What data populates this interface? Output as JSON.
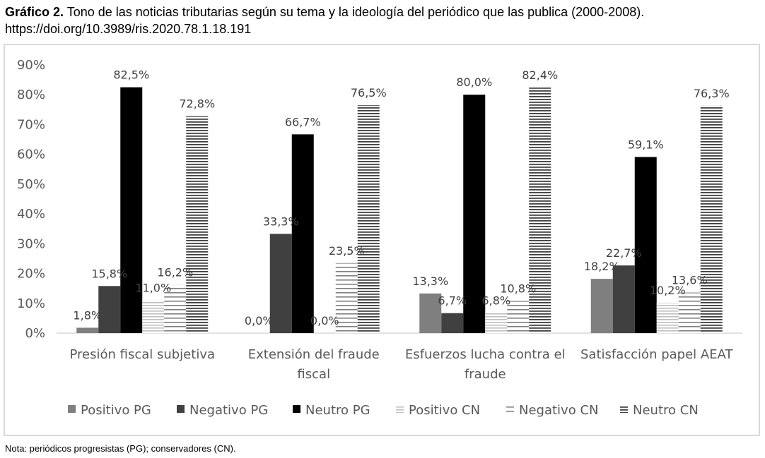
{
  "title": {
    "label": "Gráfico 2.",
    "text": " Tono de las noticias tributarias según su tema y la ideología del periódico que las publica (2000-2008). https://doi.org/10.3989/ris.2020.78.1.18.191"
  },
  "note": "Nota: periódicos progresistas (PG); conservadores (CN).",
  "chart_data": {
    "type": "bar",
    "categories": [
      [
        "Presión fiscal subjetiva"
      ],
      [
        "Extensión del fraude",
        "fiscal"
      ],
      [
        "Esfuerzos lucha contra el",
        "fraude"
      ],
      [
        "Satisfacción papel AEAT"
      ]
    ],
    "series": [
      {
        "name": "Positivo PG",
        "values": [
          1.8,
          0.0,
          13.3,
          18.2
        ],
        "labels": [
          "1,8%",
          "0,0%",
          "13,3%",
          "18,2%"
        ],
        "color": "#7f7f7f",
        "pattern": "solid"
      },
      {
        "name": "Negativo PG",
        "values": [
          15.8,
          33.3,
          6.7,
          22.7
        ],
        "labels": [
          "15,8%",
          "33,3%",
          "6,7%",
          "22,7%"
        ],
        "color": "#404040",
        "pattern": "solid"
      },
      {
        "name": "Neutro PG",
        "values": [
          82.5,
          66.7,
          80.0,
          59.1
        ],
        "labels": [
          "82,5%",
          "66,7%",
          "80,0%",
          "59,1%"
        ],
        "color": "#000000",
        "pattern": "solid"
      },
      {
        "name": "Positivo CN",
        "values": [
          11.0,
          0.0,
          6.8,
          10.2
        ],
        "labels": [
          "11,0%",
          "0,0%",
          "6,8%",
          "10,2%"
        ],
        "color": "#bfbfbf",
        "pattern": "hlines"
      },
      {
        "name": "Negativo CN",
        "values": [
          16.2,
          23.5,
          10.8,
          13.6
        ],
        "labels": [
          "16,2%",
          "23,5%",
          "10,8%",
          "13,6%"
        ],
        "color": "#7f7f7f",
        "pattern": "hlines-wide"
      },
      {
        "name": "Neutro CN",
        "values": [
          72.8,
          76.5,
          82.4,
          76.3
        ],
        "labels": [
          "72,8%",
          "76,5%",
          "82,4%",
          "76,3%"
        ],
        "color": "#404040",
        "pattern": "hlines"
      }
    ],
    "yticks": [
      "0%",
      "10%",
      "20%",
      "30%",
      "40%",
      "50%",
      "60%",
      "70%",
      "80%",
      "90%"
    ],
    "ylim": [
      0,
      90
    ],
    "grid": false,
    "legend_position": "bottom"
  }
}
